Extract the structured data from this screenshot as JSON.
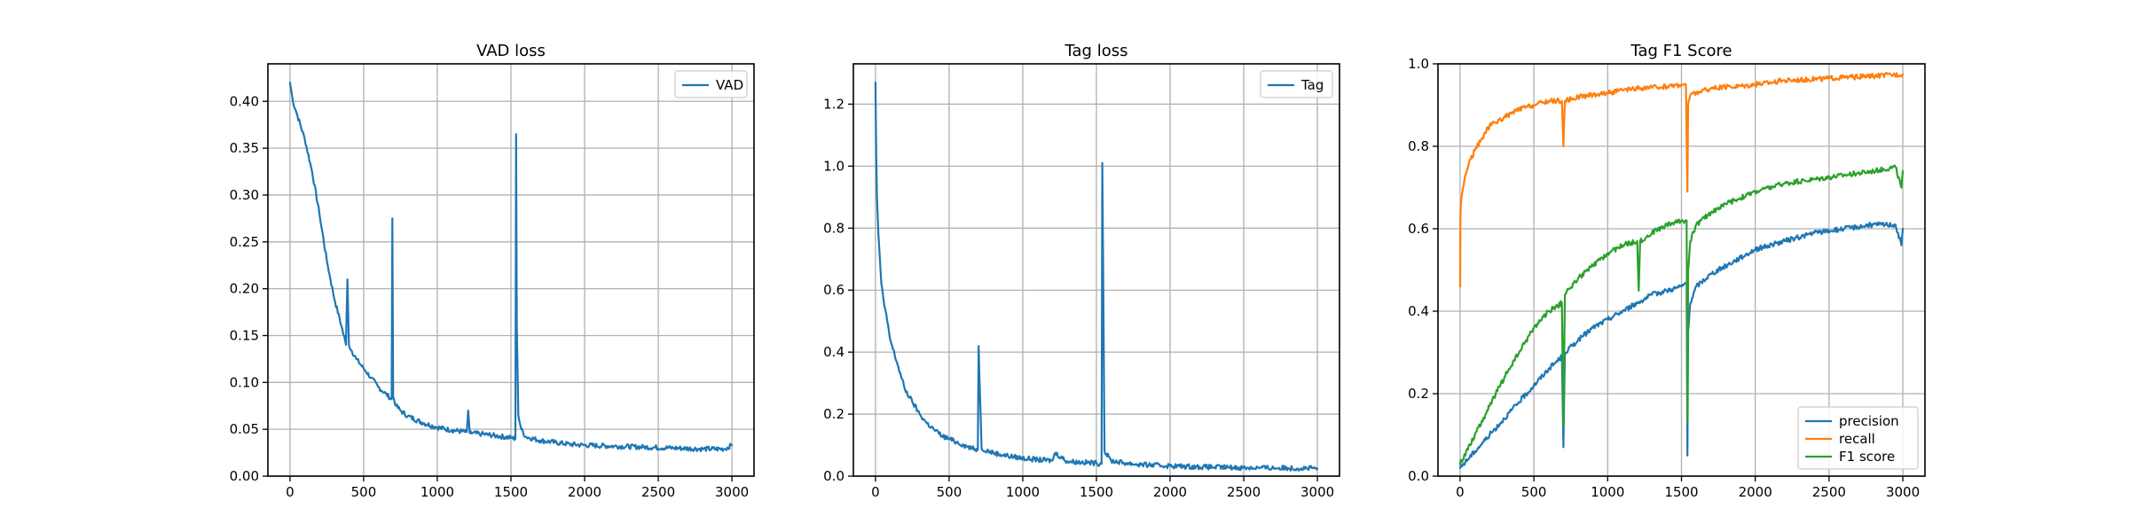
{
  "colors": {
    "c0": "#1f77b4",
    "c1": "#ff7f0e",
    "c2": "#2ca02c"
  },
  "chart_data": [
    {
      "type": "line",
      "title": "VAD loss",
      "xlabel": "",
      "ylabel": "",
      "xlim": [
        -150,
        3150
      ],
      "ylim": [
        0.0,
        0.44
      ],
      "xticks": [
        0,
        500,
        1000,
        1500,
        2000,
        2500,
        3000
      ],
      "xtick_labels": [
        "0",
        "500",
        "1000",
        "1500",
        "2000",
        "2500",
        "3000"
      ],
      "yticks": [
        0.0,
        0.05,
        0.1,
        0.15,
        0.2,
        0.25,
        0.3,
        0.35,
        0.4
      ],
      "ytick_labels": [
        "0.00",
        "0.05",
        "0.10",
        "0.15",
        "0.20",
        "0.25",
        "0.30",
        "0.35",
        "0.40"
      ],
      "grid": true,
      "legend": "upper right",
      "series": [
        {
          "name": "VAD",
          "color": "#1f77b4",
          "x": [
            0,
            20,
            50,
            100,
            150,
            200,
            250,
            300,
            350,
            380,
            390,
            400,
            450,
            500,
            550,
            600,
            650,
            690,
            695,
            700,
            720,
            750,
            800,
            900,
            1000,
            1100,
            1200,
            1210,
            1220,
            1300,
            1400,
            1500,
            1530,
            1535,
            1540,
            1550,
            1570,
            1600,
            1700,
            1800,
            1900,
            2000,
            2200,
            2400,
            2600,
            2800,
            2950,
            3000
          ],
          "y": [
            0.42,
            0.4,
            0.385,
            0.36,
            0.325,
            0.28,
            0.23,
            0.19,
            0.16,
            0.14,
            0.21,
            0.14,
            0.125,
            0.115,
            0.105,
            0.095,
            0.088,
            0.082,
            0.275,
            0.085,
            0.075,
            0.07,
            0.064,
            0.057,
            0.052,
            0.049,
            0.047,
            0.07,
            0.046,
            0.045,
            0.043,
            0.041,
            0.04,
            0.365,
            0.16,
            0.065,
            0.05,
            0.042,
            0.038,
            0.036,
            0.034,
            0.033,
            0.032,
            0.031,
            0.03,
            0.029,
            0.029,
            0.033
          ]
        }
      ]
    },
    {
      "type": "line",
      "title": "Tag loss",
      "xlabel": "",
      "ylabel": "",
      "xlim": [
        -150,
        3150
      ],
      "ylim": [
        0.0,
        1.33
      ],
      "xticks": [
        0,
        500,
        1000,
        1500,
        2000,
        2500,
        3000
      ],
      "xtick_labels": [
        "0",
        "500",
        "1000",
        "1500",
        "2000",
        "2500",
        "3000"
      ],
      "yticks": [
        0.0,
        0.2,
        0.4,
        0.6,
        0.8,
        1.0,
        1.2
      ],
      "ytick_labels": [
        "0.0",
        "0.2",
        "0.4",
        "0.6",
        "0.8",
        "1.0",
        "1.2"
      ],
      "grid": true,
      "legend": "upper right",
      "series": [
        {
          "name": "Tag",
          "color": "#1f77b4",
          "x": [
            0,
            5,
            10,
            20,
            30,
            40,
            60,
            80,
            100,
            150,
            200,
            250,
            300,
            350,
            400,
            450,
            500,
            550,
            600,
            650,
            695,
            700,
            720,
            800,
            900,
            1000,
            1100,
            1200,
            1220,
            1300,
            1400,
            1500,
            1535,
            1540,
            1555,
            1600,
            1700,
            1800,
            2000,
            2200,
            2400,
            2600,
            2800,
            3000
          ],
          "y": [
            1.27,
            1.05,
            0.9,
            0.78,
            0.7,
            0.62,
            0.55,
            0.5,
            0.44,
            0.36,
            0.28,
            0.24,
            0.2,
            0.17,
            0.15,
            0.13,
            0.12,
            0.11,
            0.1,
            0.09,
            0.085,
            0.42,
            0.09,
            0.075,
            0.065,
            0.058,
            0.053,
            0.05,
            0.075,
            0.048,
            0.045,
            0.042,
            0.04,
            1.01,
            0.08,
            0.05,
            0.042,
            0.037,
            0.033,
            0.03,
            0.028,
            0.027,
            0.026,
            0.025
          ]
        }
      ]
    },
    {
      "type": "line",
      "title": "Tag F1 Score",
      "xlabel": "",
      "ylabel": "",
      "xlim": [
        -150,
        3150
      ],
      "ylim": [
        0.0,
        1.0
      ],
      "xticks": [
        0,
        500,
        1000,
        1500,
        2000,
        2500,
        3000
      ],
      "xtick_labels": [
        "0",
        "500",
        "1000",
        "1500",
        "2000",
        "2500",
        "3000"
      ],
      "yticks": [
        0.0,
        0.2,
        0.4,
        0.6,
        0.8,
        1.0
      ],
      "ytick_labels": [
        "0.0",
        "0.2",
        "0.4",
        "0.6",
        "0.8",
        "1.0"
      ],
      "grid": true,
      "legend": "lower right",
      "series": [
        {
          "name": "precision",
          "color": "#1f77b4",
          "x": [
            0,
            100,
            200,
            300,
            400,
            500,
            600,
            690,
            700,
            710,
            800,
            900,
            1000,
            1100,
            1200,
            1300,
            1400,
            1500,
            1535,
            1540,
            1545,
            1560,
            1600,
            1700,
            1800,
            1900,
            2000,
            2200,
            2400,
            2600,
            2800,
            2950,
            2990,
            3000
          ],
          "y": [
            0.02,
            0.06,
            0.1,
            0.14,
            0.18,
            0.22,
            0.26,
            0.29,
            0.07,
            0.3,
            0.33,
            0.36,
            0.38,
            0.4,
            0.42,
            0.44,
            0.45,
            0.46,
            0.47,
            0.05,
            0.35,
            0.42,
            0.46,
            0.49,
            0.51,
            0.53,
            0.55,
            0.57,
            0.59,
            0.6,
            0.61,
            0.61,
            0.56,
            0.6
          ]
        },
        {
          "name": "recall",
          "color": "#ff7f0e",
          "x": [
            0,
            2,
            5,
            15,
            30,
            60,
            100,
            150,
            200,
            300,
            400,
            500,
            600,
            690,
            700,
            710,
            800,
            900,
            1000,
            1200,
            1400,
            1500,
            1530,
            1540,
            1545,
            1560,
            1600,
            1700,
            2000,
            2200,
            2500,
            2800,
            3000
          ],
          "y": [
            0.46,
            0.62,
            0.66,
            0.69,
            0.72,
            0.76,
            0.79,
            0.82,
            0.85,
            0.87,
            0.89,
            0.9,
            0.91,
            0.91,
            0.8,
            0.91,
            0.92,
            0.925,
            0.93,
            0.94,
            0.945,
            0.95,
            0.95,
            0.69,
            0.9,
            0.925,
            0.93,
            0.94,
            0.95,
            0.96,
            0.965,
            0.97,
            0.975
          ]
        },
        {
          "name": "F1 score",
          "color": "#2ca02c",
          "x": [
            0,
            100,
            200,
            300,
            400,
            500,
            600,
            690,
            700,
            710,
            800,
            900,
            1000,
            1100,
            1200,
            1210,
            1220,
            1300,
            1400,
            1500,
            1535,
            1540,
            1545,
            1560,
            1600,
            1700,
            1800,
            2000,
            2200,
            2400,
            2600,
            2800,
            2950,
            2990,
            3000
          ],
          "y": [
            0.03,
            0.1,
            0.17,
            0.24,
            0.3,
            0.36,
            0.4,
            0.42,
            0.12,
            0.44,
            0.48,
            0.51,
            0.54,
            0.56,
            0.57,
            0.45,
            0.57,
            0.59,
            0.61,
            0.62,
            0.62,
            0.13,
            0.5,
            0.57,
            0.61,
            0.64,
            0.66,
            0.69,
            0.71,
            0.72,
            0.73,
            0.74,
            0.75,
            0.7,
            0.74
          ]
        }
      ]
    }
  ]
}
